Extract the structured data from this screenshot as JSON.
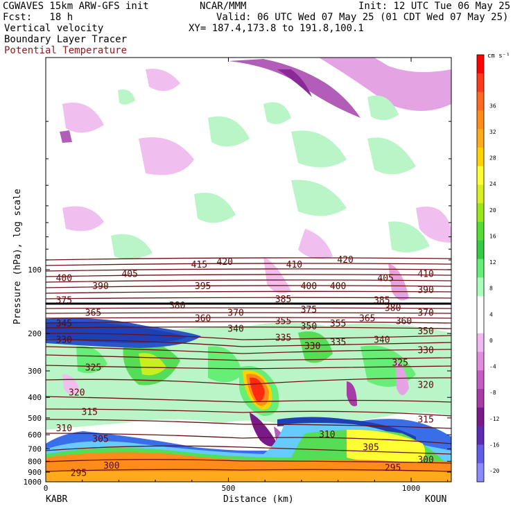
{
  "header": {
    "line1_left": "CGWAVES 15km ARW-GFS init",
    "line1_center": "NCAR/MMM",
    "line1_right": "Init: 12 UTC Tue 06 May 25",
    "line2_left": "Fcst:   18 h",
    "line2_right": "Valid: 06 UTC Wed 07 May 25 (01 CDT Wed 07 May 25)",
    "line3_left": "Vertical velocity",
    "line3_right": "XY= 187.4,173.8 to 191.8,100.1",
    "line4_left": "Boundary Layer Tracer",
    "line5_left": "Potential Temperature",
    "line5_color": "#8b1a1a"
  },
  "colorbar": {
    "unit": "cm s⁻¹",
    "levels": [
      "36",
      "32",
      "28",
      "24",
      "20",
      "16",
      "12",
      "8",
      "4",
      "0",
      "-4",
      "-8",
      "-12",
      "-16",
      "-20"
    ],
    "colors": [
      "#ff0000",
      "#ff3a1a",
      "#ff6a20",
      "#ff8c1a",
      "#ffaa1a",
      "#ffd200",
      "#ffff33",
      "#d8f020",
      "#99e619",
      "#55dd33",
      "#33cc44",
      "#66ee77",
      "#aaffbb",
      "#ffffff",
      "#ffffff",
      "#f0b8f0",
      "#e08ce0",
      "#c45ec4",
      "#a63ca6",
      "#7a1a8a",
      "#5e2cb4",
      "#5e5ee6",
      "#8a8aff"
    ]
  },
  "chart_data": {
    "type": "heatmap",
    "title": "Vertical velocity / Boundary Layer Tracer / Potential Temperature",
    "xlabel": "Distance (km)",
    "ylabel": "Pressure (hPa), log scale",
    "xlim": [
      0,
      1110
    ],
    "ylim": [
      1000,
      10
    ],
    "x_ticks": [
      0,
      500,
      1000
    ],
    "y_ticks": [
      100,
      200,
      300,
      400,
      500,
      600,
      700,
      800,
      900,
      1000
    ],
    "x_endpoint_labels": [
      "KABR",
      "KOUN"
    ],
    "theta_labels": [
      {
        "x": 50,
        "p": 110,
        "v": "400"
      },
      {
        "x": 150,
        "p": 120,
        "v": "390"
      },
      {
        "x": 230,
        "p": 105,
        "v": "405"
      },
      {
        "x": 420,
        "p": 95,
        "v": "415"
      },
      {
        "x": 490,
        "p": 92,
        "v": "420"
      },
      {
        "x": 680,
        "p": 95,
        "v": "410"
      },
      {
        "x": 820,
        "p": 90,
        "v": "420"
      },
      {
        "x": 430,
        "p": 120,
        "v": "395"
      },
      {
        "x": 720,
        "p": 120,
        "v": "400"
      },
      {
        "x": 800,
        "p": 120,
        "v": "400"
      },
      {
        "x": 930,
        "p": 110,
        "v": "405"
      },
      {
        "x": 1040,
        "p": 105,
        "v": "410"
      },
      {
        "x": 1040,
        "p": 125,
        "v": "390"
      },
      {
        "x": 50,
        "p": 140,
        "v": "375"
      },
      {
        "x": 130,
        "p": 160,
        "v": "365"
      },
      {
        "x": 360,
        "p": 148,
        "v": "380"
      },
      {
        "x": 650,
        "p": 138,
        "v": "385"
      },
      {
        "x": 920,
        "p": 140,
        "v": "385"
      },
      {
        "x": 950,
        "p": 152,
        "v": "380"
      },
      {
        "x": 520,
        "p": 160,
        "v": "370"
      },
      {
        "x": 720,
        "p": 155,
        "v": "375"
      },
      {
        "x": 1040,
        "p": 160,
        "v": "370"
      },
      {
        "x": 430,
        "p": 170,
        "v": "360"
      },
      {
        "x": 880,
        "p": 170,
        "v": "365"
      },
      {
        "x": 980,
        "p": 175,
        "v": "360"
      },
      {
        "x": 50,
        "p": 180,
        "v": "345"
      },
      {
        "x": 650,
        "p": 175,
        "v": "355"
      },
      {
        "x": 800,
        "p": 180,
        "v": "355"
      },
      {
        "x": 720,
        "p": 185,
        "v": "350"
      },
      {
        "x": 1040,
        "p": 195,
        "v": "350"
      },
      {
        "x": 520,
        "p": 190,
        "v": "340"
      },
      {
        "x": 50,
        "p": 215,
        "v": "330"
      },
      {
        "x": 650,
        "p": 210,
        "v": "335"
      },
      {
        "x": 800,
        "p": 220,
        "v": "335"
      },
      {
        "x": 730,
        "p": 230,
        "v": "330"
      },
      {
        "x": 920,
        "p": 215,
        "v": "340"
      },
      {
        "x": 1040,
        "p": 240,
        "v": "330"
      },
      {
        "x": 130,
        "p": 290,
        "v": "325"
      },
      {
        "x": 970,
        "p": 275,
        "v": "325"
      },
      {
        "x": 85,
        "p": 380,
        "v": "320"
      },
      {
        "x": 1040,
        "p": 350,
        "v": "320"
      },
      {
        "x": 120,
        "p": 470,
        "v": "315"
      },
      {
        "x": 1040,
        "p": 510,
        "v": "315"
      },
      {
        "x": 50,
        "p": 560,
        "v": "310"
      },
      {
        "x": 770,
        "p": 600,
        "v": "310"
      },
      {
        "x": 150,
        "p": 630,
        "v": "305"
      },
      {
        "x": 890,
        "p": 690,
        "v": "305"
      },
      {
        "x": 180,
        "p": 840,
        "v": "300"
      },
      {
        "x": 1040,
        "p": 790,
        "v": "300"
      },
      {
        "x": 90,
        "p": 910,
        "v": "295"
      },
      {
        "x": 950,
        "p": 860,
        "v": "295"
      }
    ]
  }
}
